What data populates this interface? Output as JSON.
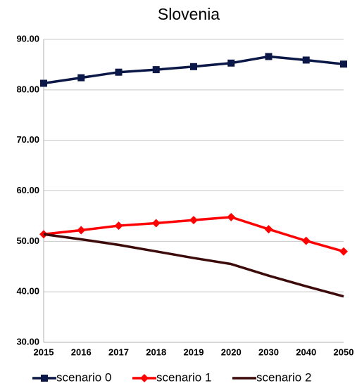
{
  "chart_data": {
    "type": "line",
    "title": "Slovenia",
    "categories": [
      "2015",
      "2016",
      "2017",
      "2018",
      "2019",
      "2020",
      "2030",
      "2040",
      "2050"
    ],
    "series": [
      {
        "name": "scenario 0",
        "color": "#0b1747",
        "marker": "square",
        "values": [
          81.3,
          82.4,
          83.5,
          84.0,
          84.6,
          85.3,
          86.6,
          85.9,
          85.1
        ]
      },
      {
        "name": "scenario 1",
        "color": "#ff0000",
        "marker": "diamond",
        "values": [
          51.4,
          52.2,
          53.1,
          53.6,
          54.2,
          54.8,
          52.4,
          50.1,
          48.0
        ]
      },
      {
        "name": "scenario 2",
        "color": "#3d0a0a",
        "values": [
          51.4,
          50.4,
          49.3,
          48.0,
          46.7,
          45.5,
          43.2,
          41.1,
          39.1
        ]
      }
    ],
    "ylim": [
      30,
      90
    ],
    "yticks": [
      {
        "value": 30,
        "label": "30.00"
      },
      {
        "value": 40,
        "label": "40.00"
      },
      {
        "value": 50,
        "label": "50.00"
      },
      {
        "value": 60,
        "label": "60.00"
      },
      {
        "value": 70,
        "label": "70.00"
      },
      {
        "value": 80,
        "label": "80.00"
      },
      {
        "value": 90,
        "label": "90.00"
      }
    ],
    "grid": true,
    "legend": "bottom"
  }
}
